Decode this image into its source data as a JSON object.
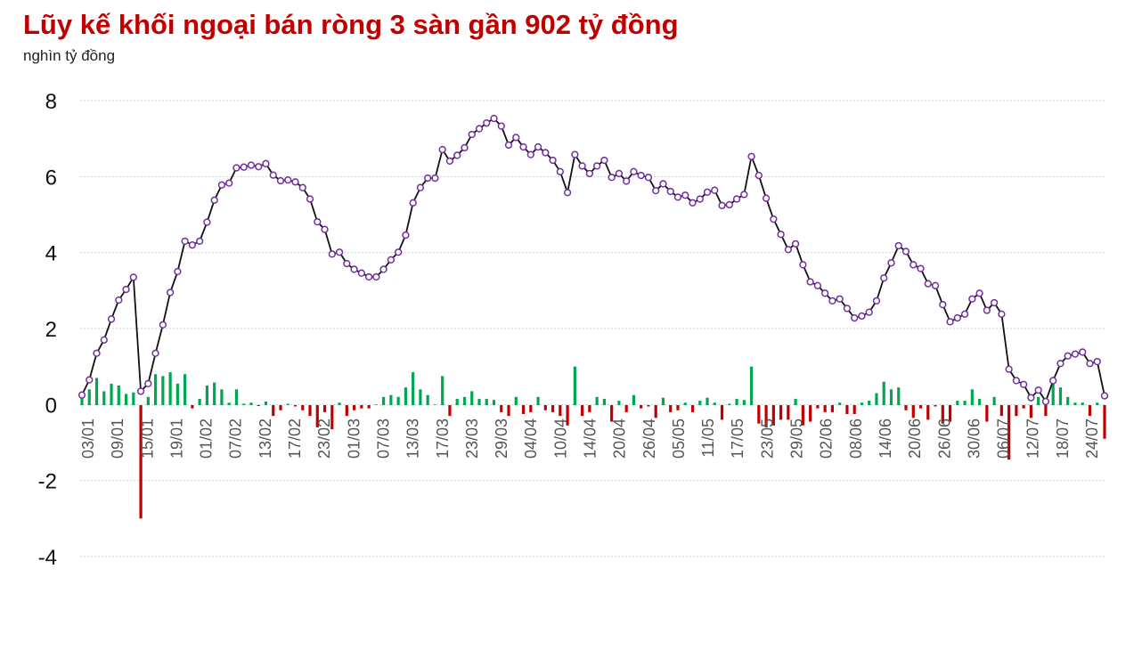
{
  "chart_data": {
    "type": "bar+line",
    "title": "Lũy kế khối ngoại bán ròng 3 sàn gần 902 tỷ đồng",
    "ylabel": "nghìn tỷ đồng",
    "ylim": [
      -4,
      8
    ],
    "yticks": [
      8,
      6,
      4,
      2,
      0,
      -2,
      -4
    ],
    "grid": true,
    "xticks": [
      "03/01",
      "09/01",
      "15/01",
      "19/01",
      "01/02",
      "07/02",
      "13/02",
      "17/02",
      "23/02",
      "01/03",
      "07/03",
      "13/03",
      "17/03",
      "23/03",
      "29/03",
      "04/04",
      "10/04",
      "14/04",
      "20/04",
      "26/04",
      "05/05",
      "11/05",
      "17/05",
      "23/05",
      "29/05",
      "02/06",
      "08/06",
      "14/06",
      "20/06",
      "26/06",
      "30/06",
      "06/07",
      "12/07",
      "18/07",
      "24/07"
    ],
    "colors": {
      "line": "#111111",
      "marker_fill": "#ffffff",
      "marker_stroke": "#7030a0",
      "bar_positive": "#00a651",
      "bar_negative": "#c00000",
      "title": "#c00000"
    },
    "series": [
      {
        "type": "bar",
        "values": [
          0.25,
          0.4,
          0.7,
          0.35,
          0.55,
          0.5,
          0.28,
          0.32,
          -3.0,
          0.2,
          0.8,
          0.75,
          0.85,
          0.55,
          0.8,
          -0.1,
          0.15,
          0.5,
          0.58,
          0.4,
          0.05,
          0.4,
          0.02,
          0.05,
          -0.04,
          0.08,
          -0.3,
          -0.15,
          0.02,
          -0.05,
          -0.15,
          -0.3,
          -0.6,
          -0.2,
          -0.65,
          0.05,
          -0.3,
          -0.15,
          -0.1,
          -0.1,
          0.0,
          0.2,
          0.25,
          0.2,
          0.45,
          0.85,
          0.4,
          0.25,
          0.0,
          0.75,
          -0.3,
          0.15,
          0.2,
          0.35,
          0.15,
          0.15,
          0.12,
          -0.2,
          -0.3,
          0.2,
          -0.25,
          -0.2,
          0.2,
          -0.15,
          -0.2,
          -0.3,
          -0.55,
          1.0,
          -0.3,
          -0.2,
          0.2,
          0.15,
          -0.45,
          0.1,
          -0.2,
          0.25,
          -0.1,
          -0.05,
          -0.35,
          0.18,
          -0.2,
          -0.15,
          0.05,
          -0.2,
          0.1,
          0.18,
          0.05,
          -0.4,
          0.02,
          0.15,
          0.12,
          1.0,
          -0.5,
          -0.6,
          -0.55,
          -0.4,
          -0.4,
          0.15,
          -0.55,
          -0.45,
          -0.1,
          -0.2,
          -0.2,
          0.05,
          -0.25,
          -0.25,
          0.05,
          0.1,
          0.3,
          0.6,
          0.4,
          0.45,
          -0.15,
          -0.35,
          -0.1,
          -0.4,
          -0.05,
          -0.5,
          -0.45,
          0.1,
          0.1,
          0.4,
          0.15,
          -0.45,
          0.2,
          -0.3,
          -1.45,
          -0.3,
          -0.1,
          -0.35,
          0.2,
          -0.3,
          0.55,
          0.45,
          0.2,
          0.05,
          0.05,
          -0.3,
          0.05,
          -0.9
        ]
      },
      {
        "type": "line",
        "values": [
          0.25,
          0.65,
          1.35,
          1.7,
          2.25,
          2.75,
          3.03,
          3.35,
          0.35,
          0.55,
          1.35,
          2.1,
          2.95,
          3.5,
          4.3,
          4.2,
          4.3,
          4.8,
          5.38,
          5.78,
          5.83,
          6.23,
          6.25,
          6.3,
          6.26,
          6.34,
          6.04,
          5.89,
          5.91,
          5.86,
          5.71,
          5.41,
          4.81,
          4.61,
          3.96,
          4.01,
          3.71,
          3.56,
          3.46,
          3.36,
          3.36,
          3.56,
          3.81,
          4.01,
          4.46,
          5.31,
          5.71,
          5.96,
          5.96,
          6.71,
          6.41,
          6.56,
          6.76,
          7.11,
          7.26,
          7.41,
          7.53,
          7.33,
          6.83,
          7.03,
          6.78,
          6.58,
          6.78,
          6.63,
          6.43,
          6.13,
          5.58,
          6.58,
          6.28,
          6.08,
          6.28,
          6.43,
          5.98,
          6.08,
          5.88,
          6.13,
          6.03,
          5.98,
          5.63,
          5.81,
          5.61,
          5.46,
          5.51,
          5.31,
          5.41,
          5.59,
          5.64,
          5.24,
          5.26,
          5.41,
          5.53,
          6.53,
          6.03,
          5.43,
          4.88,
          4.48,
          4.08,
          4.23,
          3.68,
          3.23,
          3.13,
          2.93,
          2.73,
          2.78,
          2.53,
          2.28,
          2.33,
          2.43,
          2.73,
          3.33,
          3.73,
          4.18,
          4.03,
          3.68,
          3.58,
          3.18,
          3.13,
          2.63,
          2.18,
          2.28,
          2.38,
          2.78,
          2.93,
          2.48,
          2.68,
          2.38,
          0.93,
          0.63,
          0.53,
          0.18,
          0.38,
          0.08,
          0.63,
          1.08,
          1.28,
          1.33,
          1.38,
          1.08,
          1.13,
          0.23
        ]
      }
    ]
  }
}
